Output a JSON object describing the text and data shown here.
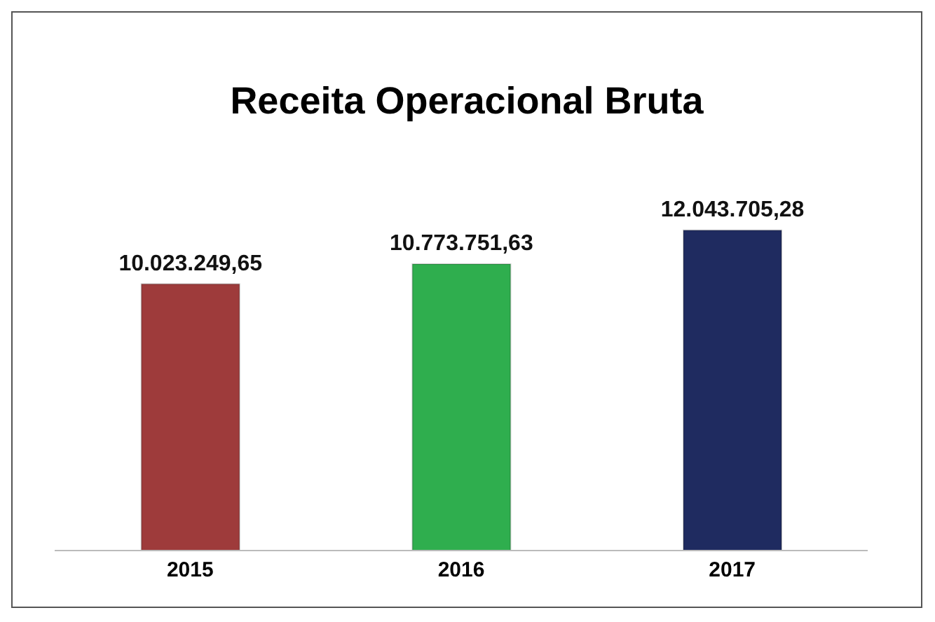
{
  "chart_data": {
    "type": "bar",
    "title": "Receita Operacional  Bruta",
    "categories": [
      "2015",
      "2016",
      "2017"
    ],
    "values": [
      10023249.65,
      10773751.63,
      12043705.28
    ],
    "value_labels": [
      "10.023.249,65",
      "10.773.751,63",
      "12.043.705,28"
    ],
    "colors": [
      "#9e3b3b",
      "#2fae4e",
      "#1f2b60"
    ]
  }
}
